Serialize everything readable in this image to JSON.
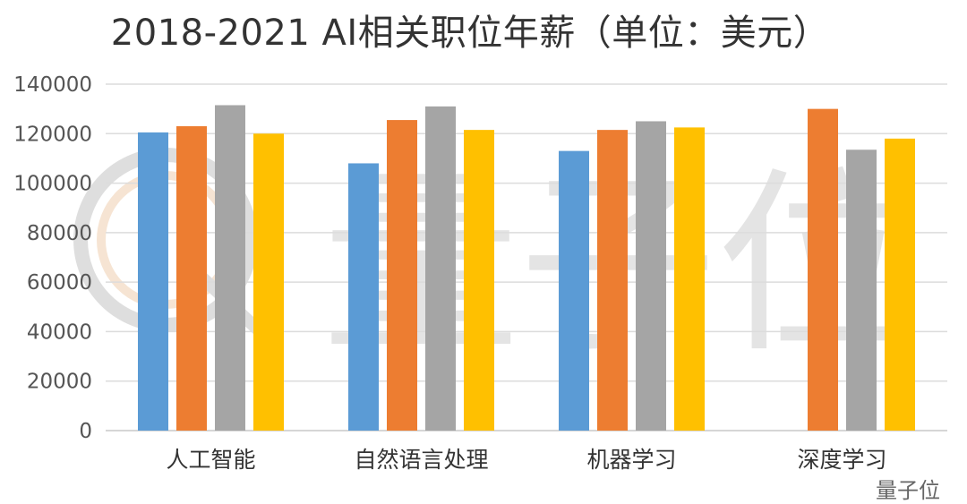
{
  "chart_data": {
    "type": "bar",
    "title": "2018-2021 AI相关职位年薪（单位：美元）",
    "xlabel": "",
    "ylabel": "",
    "ylim": [
      0,
      140000
    ],
    "yticks": [
      0,
      20000,
      40000,
      60000,
      80000,
      100000,
      120000,
      140000
    ],
    "categories": [
      "人工智能",
      "自然语言处理",
      "机器学习",
      "深度学习"
    ],
    "series": [
      {
        "color": "#5b9bd5",
        "values": [
          120500,
          108000,
          113000,
          null
        ]
      },
      {
        "color": "#ed7d31",
        "values": [
          123000,
          125500,
          121500,
          130000
        ]
      },
      {
        "color": "#a5a5a5",
        "values": [
          131500,
          131000,
          125000,
          113500
        ]
      },
      {
        "color": "#ffc000",
        "values": [
          120000,
          121500,
          122500,
          118000
        ]
      }
    ],
    "grid": true,
    "legend": "none"
  },
  "watermark": {
    "text": "量子位",
    "icon": "qubit-logo-icon"
  }
}
